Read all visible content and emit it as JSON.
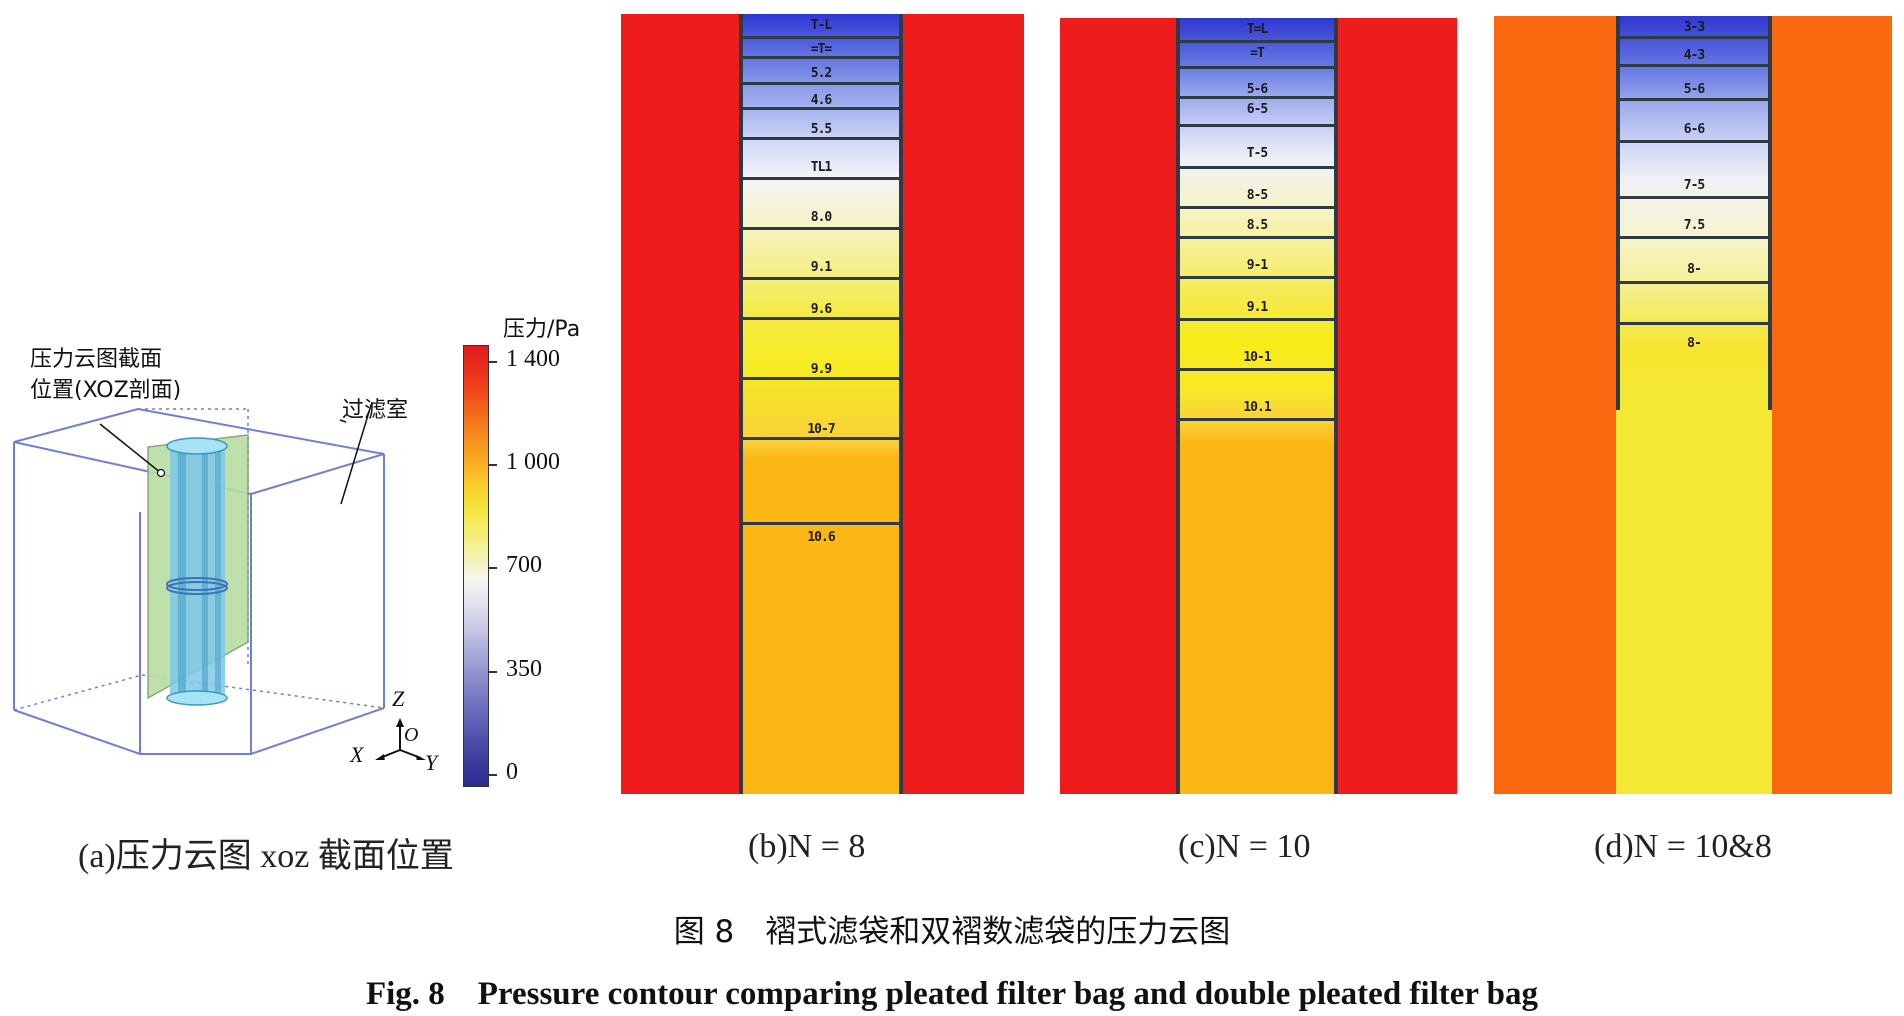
{
  "panel_a": {
    "label_section_line1": "压力云图截面",
    "label_section_line2": "位置(XOZ剖面)",
    "label_chamber": "过滤室",
    "axis_z": "Z",
    "axis_o": "O",
    "axis_x": "X",
    "axis_y": "Y",
    "caption": "(a)压力云图 xoz 截面位置"
  },
  "colorbar": {
    "title": "压力/Pa",
    "ticks": [
      "1 400",
      "1 000",
      "700",
      "350",
      "0"
    ],
    "range": [
      0,
      1400
    ]
  },
  "panel_b": {
    "caption": "(b)N = 8",
    "contour_labels": [
      "T-L",
      "=T=",
      "5.2",
      "4.6",
      "5.5",
      "TL1",
      "8.0",
      "9.1",
      "9.6",
      "9.9",
      "10-7",
      "10.6"
    ]
  },
  "panel_c": {
    "caption": "(c)N = 10",
    "contour_labels": [
      "T=L",
      "=T",
      "5-6",
      "6-5",
      "T-5",
      "8-5",
      "8.5",
      "9-1",
      "9.1",
      "10-1",
      "10.1"
    ]
  },
  "panel_d": {
    "caption": "(d)N = 10&8",
    "contour_labels": [
      "3-3",
      "4-3",
      "5-6",
      "6-6",
      "7-5",
      "7.5",
      "8-",
      "8-"
    ]
  },
  "figure": {
    "title_cn": "图 8　褶式滤袋和双褶数滤袋的压力云图",
    "title_en": "Fig. 8　Pressure contour comparing pleated filter bag and double pleated filter bag"
  },
  "colors": {
    "red": "#ee1c1c",
    "orange": "#f9680f",
    "amber": "#fbb714",
    "yellow": "#f5e832",
    "blue_dark": "#2b2fb5",
    "isoline": "#2f3b44"
  }
}
